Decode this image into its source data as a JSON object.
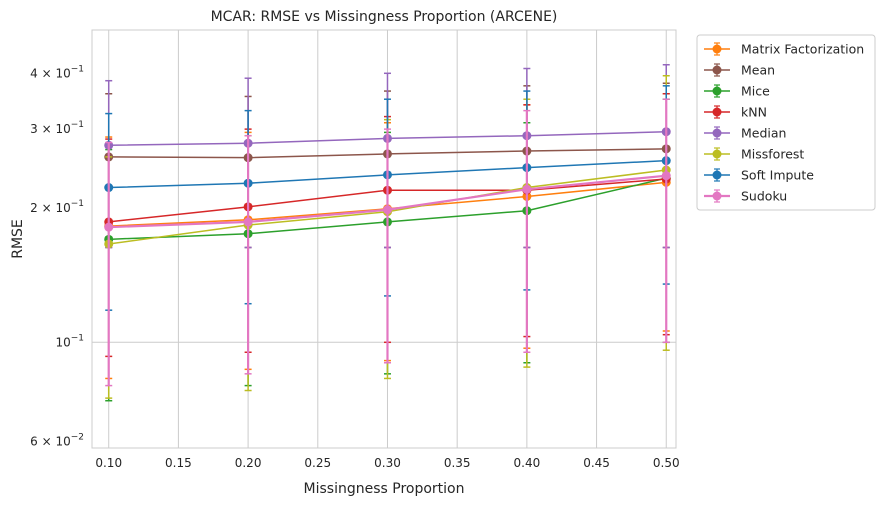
{
  "chart_data": {
    "type": "line",
    "title": "MCAR: RMSE vs Missingness Proportion (ARCENE)",
    "xlabel": "Missingness Proportion",
    "ylabel": "RMSE",
    "xlim": [
      0.088,
      0.507
    ],
    "ylim": [
      0.058,
      0.5
    ],
    "yscale": "log",
    "grid": true,
    "legend_position": "outside-right",
    "x": [
      0.1,
      0.2,
      0.3,
      0.4,
      0.5
    ],
    "x_ticks": [
      {
        "value": 0.1,
        "label": "0.10"
      },
      {
        "value": 0.15,
        "label": "0.15"
      },
      {
        "value": 0.2,
        "label": "0.20"
      },
      {
        "value": 0.25,
        "label": "0.25"
      },
      {
        "value": 0.3,
        "label": "0.30"
      },
      {
        "value": 0.35,
        "label": "0.35"
      },
      {
        "value": 0.4,
        "label": "0.40"
      },
      {
        "value": 0.45,
        "label": "0.45"
      },
      {
        "value": 0.5,
        "label": "0.50"
      }
    ],
    "y_ticks": [
      {
        "value": 0.06,
        "base": "6 × 10",
        "exp": "−2"
      },
      {
        "value": 0.1,
        "base": "10",
        "exp": "−1"
      },
      {
        "value": 0.2,
        "base": "2 × 10",
        "exp": "−1"
      },
      {
        "value": 0.3,
        "base": "3 × 10",
        "exp": "−1"
      },
      {
        "value": 0.4,
        "base": "4 × 10",
        "exp": "−1"
      }
    ],
    "y_gridlines": [
      0.1
    ],
    "series": [
      {
        "name": "Matrix Factorization",
        "color": "#ff7f0e",
        "width": 1.5,
        "values": [
          0.182,
          0.188,
          0.199,
          0.212,
          0.228
        ],
        "lower": [
          0.083,
          0.087,
          0.091,
          0.097,
          0.106
        ],
        "upper": [
          0.288,
          0.295,
          0.31,
          0.34,
          0.36
        ]
      },
      {
        "name": "Mean",
        "color": "#8c564b",
        "width": 1.5,
        "values": [
          0.26,
          0.259,
          0.264,
          0.268,
          0.271
        ],
        "lower": [
          0.163,
          0.163,
          0.163,
          0.163,
          0.163
        ],
        "upper": [
          0.36,
          0.355,
          0.365,
          0.375,
          0.38
        ]
      },
      {
        "name": "Mice",
        "color": "#2ca02c",
        "width": 1.5,
        "values": [
          0.17,
          0.175,
          0.186,
          0.197,
          0.233
        ],
        "lower": [
          0.074,
          0.08,
          0.085,
          0.09,
          0.1
        ],
        "upper": [
          0.27,
          0.28,
          0.295,
          0.31,
          0.35
        ]
      },
      {
        "name": "kNN",
        "color": "#d62728",
        "width": 1.5,
        "values": [
          0.186,
          0.201,
          0.219,
          0.219,
          0.232
        ],
        "lower": [
          0.093,
          0.095,
          0.1,
          0.103,
          0.104
        ],
        "upper": [
          0.285,
          0.3,
          0.32,
          0.34,
          0.36
        ]
      },
      {
        "name": "Median",
        "color": "#9467bd",
        "width": 1.5,
        "values": [
          0.276,
          0.279,
          0.286,
          0.29,
          0.296
        ],
        "lower": [
          0.163,
          0.163,
          0.163,
          0.163,
          0.163
        ],
        "upper": [
          0.385,
          0.39,
          0.4,
          0.41,
          0.418
        ]
      },
      {
        "name": "Missforest",
        "color": "#bcbd22",
        "width": 1.5,
        "values": [
          0.166,
          0.183,
          0.196,
          0.222,
          0.243
        ],
        "lower": [
          0.075,
          0.078,
          0.083,
          0.088,
          0.096
        ],
        "upper": [
          0.26,
          0.29,
          0.315,
          0.35,
          0.395
        ]
      },
      {
        "name": "Soft Impute",
        "color": "#1f77b4",
        "width": 1.5,
        "values": [
          0.222,
          0.227,
          0.237,
          0.246,
          0.255
        ],
        "lower": [
          0.118,
          0.122,
          0.127,
          0.131,
          0.135
        ],
        "upper": [
          0.325,
          0.33,
          0.35,
          0.365,
          0.375
        ]
      },
      {
        "name": "Sudoku",
        "color": "#e377c2",
        "width": 2.2,
        "values": [
          0.181,
          0.186,
          0.198,
          0.22,
          0.236
        ],
        "lower": [
          0.08,
          0.085,
          0.09,
          0.095,
          0.1
        ],
        "upper": [
          0.28,
          0.29,
          0.3,
          0.33,
          0.35
        ]
      }
    ]
  }
}
